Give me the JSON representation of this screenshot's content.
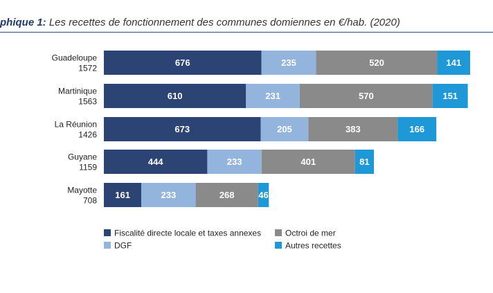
{
  "title_prefix": "phique 1:",
  "title_main": " Les recettes de fonctionnement des communes domiennes en €/hab. (2020)",
  "chart_data": {
    "type": "bar",
    "orientation": "horizontal",
    "stacked": true,
    "categories": [
      "Guadeloupe",
      "Martinique",
      "La Réunion",
      "Guyane",
      "Mayotte"
    ],
    "totals": [
      "1572",
      "1563",
      "1426",
      "1159",
      "708"
    ],
    "series": [
      {
        "name": "Fiscalité directe locale et taxes annexes",
        "color": "#2b4473",
        "values": [
          676,
          610,
          673,
          444,
          161
        ]
      },
      {
        "name": "DGF",
        "color": "#93b4dd",
        "values": [
          235,
          231,
          205,
          233,
          233
        ]
      },
      {
        "name": "Octroi de mer",
        "color": "#8a8a8a",
        "values": [
          520,
          570,
          383,
          401,
          268
        ]
      },
      {
        "name": "Autres recettes",
        "color": "#1e98d6",
        "values": [
          141,
          151,
          166,
          81,
          46
        ]
      }
    ],
    "legend_position": "bottom",
    "grid": false
  }
}
